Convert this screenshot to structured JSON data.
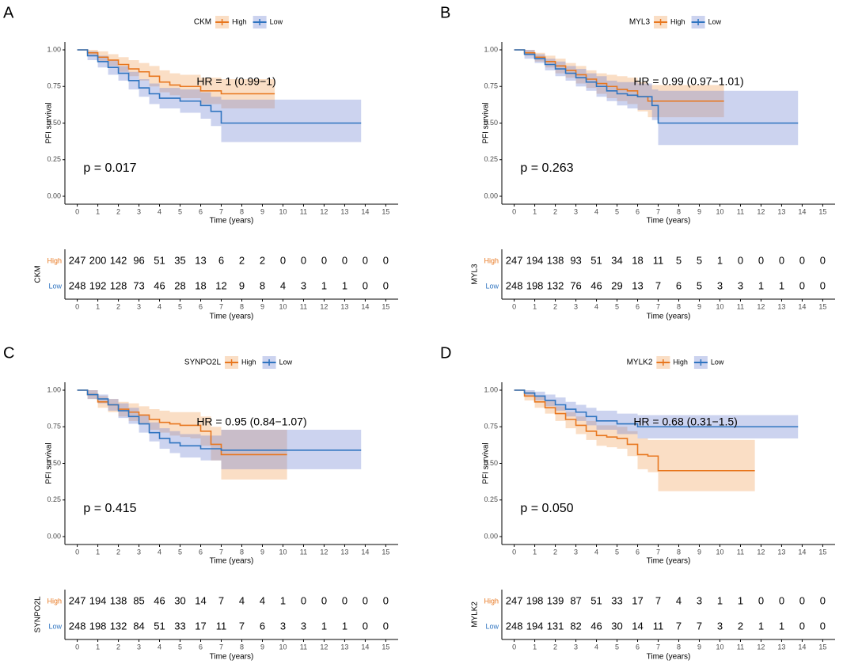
{
  "chart_data": [
    {
      "panel": "A",
      "type": "km",
      "legend_title": "CKM",
      "xlabel": "Time (years)",
      "ylabel": "PFI survival",
      "xlim": [
        -0.6,
        15.6
      ],
      "xticks": [
        0,
        1,
        2,
        3,
        4,
        5,
        6,
        7,
        8,
        9,
        10,
        11,
        12,
        13,
        14,
        15
      ],
      "ylim": [
        -0.054,
        1.054
      ],
      "yticks": [
        {
          "value": 0,
          "label": "0.00"
        },
        0.25,
        {
          "value": 0.5,
          "label": "0.50"
        },
        0.75,
        {
          "value": 1,
          "label": "1.00"
        }
      ],
      "annotations": [
        "HR = 1 (0.99−1)",
        "p = 0.017"
      ],
      "series": [
        {
          "name": "High",
          "color": "#e8771f",
          "band_color": "rgba(240,160,90,0.35)",
          "x": [
            0,
            0.5,
            1,
            1.5,
            2,
            2.5,
            3,
            3.5,
            4,
            4.5,
            5,
            6,
            7,
            9.6
          ],
          "values": [
            1,
            0.98,
            0.95,
            0.93,
            0.9,
            0.87,
            0.85,
            0.82,
            0.78,
            0.76,
            0.75,
            0.72,
            0.7,
            0.7
          ],
          "lower": [
            1,
            0.96,
            0.92,
            0.89,
            0.85,
            0.82,
            0.79,
            0.75,
            0.71,
            0.69,
            0.67,
            0.63,
            0.6,
            0.6
          ],
          "upper": [
            1,
            1,
            0.99,
            0.97,
            0.95,
            0.93,
            0.91,
            0.89,
            0.86,
            0.84,
            0.83,
            0.81,
            0.8,
            0.8
          ]
        },
        {
          "name": "Low",
          "color": "#2f74c0",
          "band_color": "rgba(110,130,210,0.35)",
          "x": [
            0,
            0.5,
            1,
            1.5,
            2,
            2.5,
            3,
            3.5,
            4,
            5,
            6,
            6.5,
            7,
            13.8
          ],
          "values": [
            1,
            0.96,
            0.92,
            0.88,
            0.84,
            0.79,
            0.74,
            0.7,
            0.67,
            0.65,
            0.62,
            0.58,
            0.5,
            0.5
          ],
          "lower": [
            1,
            0.93,
            0.88,
            0.83,
            0.79,
            0.73,
            0.68,
            0.63,
            0.6,
            0.57,
            0.53,
            0.48,
            0.37,
            0.37
          ],
          "upper": [
            1,
            0.99,
            0.96,
            0.93,
            0.89,
            0.85,
            0.8,
            0.77,
            0.74,
            0.73,
            0.71,
            0.68,
            0.66,
            0.66
          ]
        }
      ],
      "risk_table": [
        [
          247,
          200,
          142,
          96,
          51,
          35,
          13,
          6,
          2,
          2,
          0,
          0,
          0,
          0,
          0,
          0
        ],
        [
          248,
          192,
          128,
          73,
          46,
          28,
          18,
          12,
          9,
          8,
          4,
          3,
          1,
          1,
          0,
          0
        ]
      ]
    },
    {
      "panel": "B",
      "type": "km",
      "legend_title": "MYL3",
      "xlabel": "Time (years)",
      "ylabel": "PFI survival",
      "xlim": [
        -0.6,
        15.6
      ],
      "xticks": [
        0,
        1,
        2,
        3,
        4,
        5,
        6,
        7,
        8,
        9,
        10,
        11,
        12,
        13,
        14,
        15
      ],
      "ylim": [
        -0.054,
        1.054
      ],
      "yticks": [
        {
          "value": 0,
          "label": "0.00"
        },
        0.25,
        {
          "value": 0.5,
          "label": "0.50"
        },
        0.75,
        {
          "value": 1,
          "label": "1.00"
        }
      ],
      "annotations": [
        "HR = 0.99 (0.97−1.01)",
        "p = 0.263"
      ],
      "series": [
        {
          "name": "High",
          "color": "#e8771f",
          "band_color": "rgba(240,160,90,0.35)",
          "x": [
            0,
            0.5,
            1,
            1.5,
            2,
            2.5,
            3,
            3.5,
            4,
            4.5,
            5,
            5.5,
            6,
            6.5,
            7,
            10.2
          ],
          "values": [
            1,
            0.98,
            0.95,
            0.92,
            0.89,
            0.86,
            0.83,
            0.8,
            0.77,
            0.75,
            0.73,
            0.72,
            0.68,
            0.65,
            0.65,
            0.65
          ],
          "lower": [
            1,
            0.96,
            0.92,
            0.88,
            0.84,
            0.81,
            0.77,
            0.74,
            0.7,
            0.67,
            0.65,
            0.63,
            0.58,
            0.54,
            0.54,
            0.54
          ],
          "upper": [
            1,
            1,
            0.98,
            0.96,
            0.94,
            0.91,
            0.89,
            0.86,
            0.84,
            0.83,
            0.82,
            0.81,
            0.78,
            0.76,
            0.76,
            0.76
          ]
        },
        {
          "name": "Low",
          "color": "#2f74c0",
          "band_color": "rgba(110,130,210,0.35)",
          "x": [
            0,
            0.5,
            1,
            1.5,
            2,
            2.5,
            3,
            3.5,
            4,
            4.5,
            5,
            5.5,
            6,
            6.7,
            7,
            13.8
          ],
          "values": [
            1,
            0.97,
            0.94,
            0.9,
            0.87,
            0.84,
            0.81,
            0.78,
            0.75,
            0.72,
            0.7,
            0.69,
            0.68,
            0.62,
            0.5,
            0.5
          ],
          "lower": [
            1,
            0.94,
            0.91,
            0.86,
            0.82,
            0.79,
            0.75,
            0.72,
            0.68,
            0.65,
            0.62,
            0.6,
            0.59,
            0.52,
            0.35,
            0.35
          ],
          "upper": [
            1,
            1,
            0.97,
            0.94,
            0.92,
            0.89,
            0.87,
            0.84,
            0.82,
            0.79,
            0.78,
            0.78,
            0.77,
            0.73,
            0.72,
            0.72
          ]
        }
      ],
      "risk_table": [
        [
          247,
          194,
          138,
          93,
          51,
          34,
          18,
          11,
          5,
          5,
          1,
          0,
          0,
          0,
          0,
          0
        ],
        [
          248,
          198,
          132,
          76,
          46,
          29,
          13,
          7,
          6,
          5,
          3,
          3,
          1,
          1,
          0,
          0
        ]
      ]
    },
    {
      "panel": "C",
      "type": "km",
      "legend_title": "SYNPO2L",
      "xlabel": "Time (years)",
      "ylabel": "PFI survival",
      "xlim": [
        -0.6,
        15.6
      ],
      "xticks": [
        0,
        1,
        2,
        3,
        4,
        5,
        6,
        7,
        8,
        9,
        10,
        11,
        12,
        13,
        14,
        15
      ],
      "ylim": [
        -0.054,
        1.054
      ],
      "yticks": [
        {
          "value": 0,
          "label": "0.00"
        },
        0.25,
        {
          "value": 0.5,
          "label": "0.50"
        },
        0.75,
        {
          "value": 1,
          "label": "1.00"
        }
      ],
      "annotations": [
        "HR = 0.95 (0.84−1.07)",
        "p = 0.415"
      ],
      "series": [
        {
          "name": "High",
          "color": "#e8771f",
          "band_color": "rgba(240,160,90,0.35)",
          "x": [
            0,
            0.5,
            1,
            1.5,
            2,
            2.5,
            3,
            3.5,
            4,
            4.5,
            5,
            5.5,
            6,
            6.5,
            7,
            10.2
          ],
          "values": [
            1,
            0.97,
            0.92,
            0.9,
            0.87,
            0.85,
            0.83,
            0.8,
            0.78,
            0.77,
            0.76,
            0.76,
            0.72,
            0.63,
            0.56,
            0.56
          ],
          "lower": [
            1,
            0.94,
            0.88,
            0.85,
            0.82,
            0.79,
            0.77,
            0.73,
            0.71,
            0.69,
            0.68,
            0.67,
            0.62,
            0.52,
            0.39,
            0.39
          ],
          "upper": [
            1,
            1,
            0.96,
            0.94,
            0.92,
            0.91,
            0.89,
            0.87,
            0.86,
            0.85,
            0.85,
            0.85,
            0.82,
            0.75,
            0.73,
            0.73
          ]
        },
        {
          "name": "Low",
          "color": "#2f74c0",
          "band_color": "rgba(110,130,210,0.35)",
          "x": [
            0,
            0.5,
            1,
            1.5,
            2,
            2.5,
            3,
            3.5,
            4,
            4.5,
            5,
            6,
            7,
            13.8
          ],
          "values": [
            1,
            0.97,
            0.94,
            0.9,
            0.86,
            0.82,
            0.77,
            0.71,
            0.67,
            0.64,
            0.62,
            0.6,
            0.59,
            0.59
          ],
          "lower": [
            1,
            0.94,
            0.91,
            0.86,
            0.81,
            0.77,
            0.71,
            0.65,
            0.6,
            0.57,
            0.54,
            0.52,
            0.46,
            0.46
          ],
          "upper": [
            1,
            1,
            0.97,
            0.94,
            0.91,
            0.88,
            0.83,
            0.78,
            0.74,
            0.72,
            0.7,
            0.69,
            0.73,
            0.73
          ]
        }
      ],
      "risk_table": [
        [
          247,
          194,
          138,
          85,
          46,
          30,
          14,
          7,
          4,
          4,
          1,
          0,
          0,
          0,
          0,
          0
        ],
        [
          248,
          198,
          132,
          84,
          51,
          33,
          17,
          11,
          7,
          6,
          3,
          3,
          1,
          1,
          0,
          0
        ]
      ]
    },
    {
      "panel": "D",
      "type": "km",
      "legend_title": "MYLK2",
      "xlabel": "Time (years)",
      "ylabel": "PFI survival",
      "xlim": [
        -0.6,
        15.6
      ],
      "xticks": [
        0,
        1,
        2,
        3,
        4,
        5,
        6,
        7,
        8,
        9,
        10,
        11,
        12,
        13,
        14,
        15
      ],
      "ylim": [
        -0.054,
        1.054
      ],
      "yticks": [
        {
          "value": 0,
          "label": "0.00"
        },
        0.25,
        {
          "value": 0.5,
          "label": "0.50"
        },
        0.75,
        {
          "value": 1,
          "label": "1.00"
        }
      ],
      "annotations": [
        "HR = 0.68 (0.31−1.5)",
        "p = 0.050"
      ],
      "series": [
        {
          "name": "High",
          "color": "#e8771f",
          "band_color": "rgba(240,160,90,0.35)",
          "x": [
            0,
            0.5,
            1,
            1.5,
            2,
            2.5,
            3,
            3.5,
            4,
            4.5,
            5,
            5.5,
            6,
            6.5,
            7,
            11.7
          ],
          "values": [
            1,
            0.96,
            0.92,
            0.88,
            0.84,
            0.8,
            0.76,
            0.72,
            0.69,
            0.68,
            0.67,
            0.63,
            0.56,
            0.55,
            0.45,
            0.45
          ],
          "lower": [
            1,
            0.93,
            0.88,
            0.84,
            0.79,
            0.74,
            0.7,
            0.66,
            0.62,
            0.61,
            0.6,
            0.55,
            0.46,
            0.44,
            0.31,
            0.31
          ],
          "upper": [
            1,
            0.99,
            0.96,
            0.93,
            0.89,
            0.85,
            0.82,
            0.79,
            0.76,
            0.76,
            0.75,
            0.72,
            0.67,
            0.66,
            0.66,
            0.66
          ]
        },
        {
          "name": "Low",
          "color": "#2f74c0",
          "band_color": "rgba(110,130,210,0.35)",
          "x": [
            0,
            0.5,
            1,
            1.5,
            2,
            2.5,
            3,
            3.5,
            4,
            5,
            6,
            7,
            13.8
          ],
          "values": [
            1,
            0.98,
            0.96,
            0.93,
            0.9,
            0.87,
            0.85,
            0.82,
            0.79,
            0.77,
            0.75,
            0.75,
            0.75
          ],
          "lower": [
            1,
            0.96,
            0.93,
            0.89,
            0.86,
            0.82,
            0.79,
            0.76,
            0.73,
            0.7,
            0.67,
            0.67,
            0.67
          ],
          "upper": [
            1,
            1,
            0.99,
            0.97,
            0.95,
            0.92,
            0.9,
            0.88,
            0.86,
            0.84,
            0.83,
            0.83,
            0.83
          ]
        }
      ],
      "risk_table": [
        [
          247,
          198,
          139,
          87,
          51,
          33,
          17,
          7,
          4,
          3,
          1,
          1,
          0,
          0,
          0,
          0
        ],
        [
          248,
          194,
          131,
          82,
          46,
          30,
          14,
          11,
          7,
          7,
          3,
          2,
          1,
          1,
          0,
          0
        ]
      ]
    }
  ]
}
